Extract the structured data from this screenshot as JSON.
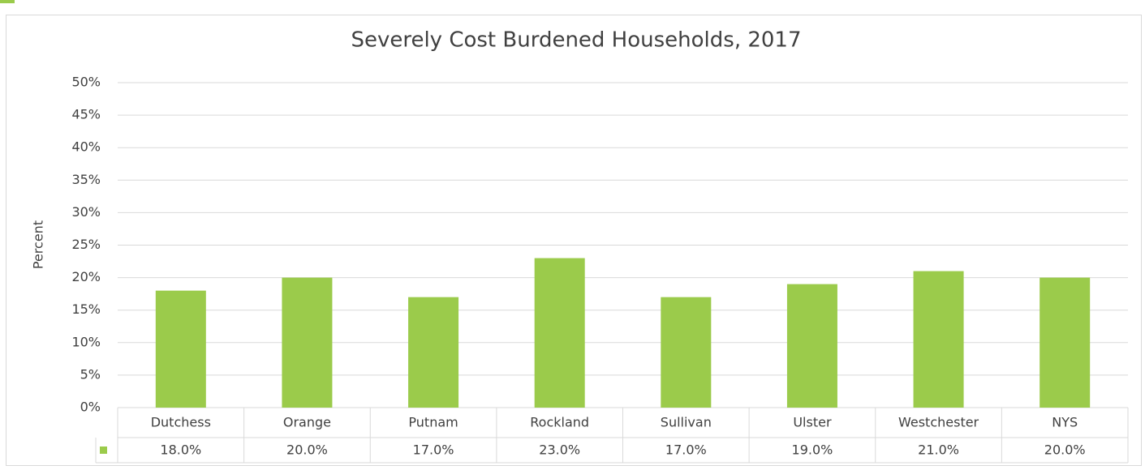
{
  "chart_data": {
    "type": "bar",
    "title": "Severely Cost Burdened Households, 2017",
    "ylabel": "Percent",
    "categories": [
      "Dutchess",
      "Orange",
      "Putnam",
      "Rockland",
      "Sullivan",
      "Ulster",
      "Westchester",
      "NYS"
    ],
    "values": [
      18,
      20,
      17,
      23,
      17,
      19,
      21,
      20
    ],
    "value_labels": [
      "18.0%",
      "20.0%",
      "17.0%",
      "23.0%",
      "17.0%",
      "19.0%",
      "21.0%",
      "20.0%"
    ],
    "color": "#9bcb4b",
    "ylim": [
      0,
      50
    ],
    "yticks": [
      {
        "value": 0,
        "label": "0%"
      },
      {
        "value": 5,
        "label": "5%"
      },
      {
        "value": 10,
        "label": "10%"
      },
      {
        "value": 15,
        "label": "15%"
      },
      {
        "value": 20,
        "label": "20%"
      },
      {
        "value": 25,
        "label": "25%"
      },
      {
        "value": 30,
        "label": "30%"
      },
      {
        "value": 35,
        "label": "35%"
      },
      {
        "value": 40,
        "label": "40%"
      },
      {
        "value": 45,
        "label": "45%"
      },
      {
        "value": 50,
        "label": "50%"
      }
    ],
    "grid": true
  }
}
